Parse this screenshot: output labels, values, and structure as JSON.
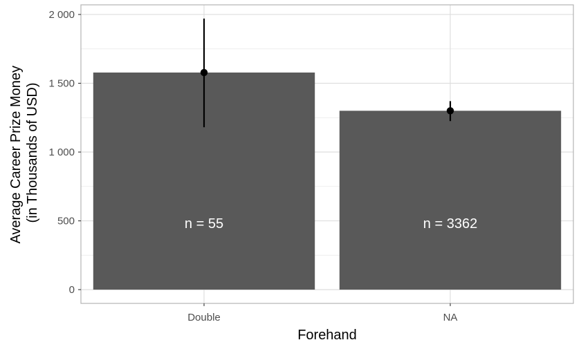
{
  "chart_data": {
    "type": "bar",
    "xlabel": "Forehand",
    "ylabel_lines": [
      "Average Career Prize Money",
      "(in Thousands of USD)"
    ],
    "categories": [
      "Double",
      "NA"
    ],
    "values": [
      1578,
      1300
    ],
    "error_low": [
      1180,
      1225
    ],
    "error_high": [
      1970,
      1370
    ],
    "annotations": [
      "n = 55",
      "n = 3362"
    ],
    "ylim": [
      -100,
      2070
    ],
    "yticks": [
      0,
      500,
      1000,
      1500,
      2000
    ],
    "ytick_labels": [
      "0",
      "500",
      "1 000",
      "1 500",
      "2 000"
    ],
    "grid": true,
    "bar_color": "#595959",
    "error_color": "#000000",
    "grid_color": "#ebebeb",
    "panel_border_color": "#b3b3b3"
  }
}
